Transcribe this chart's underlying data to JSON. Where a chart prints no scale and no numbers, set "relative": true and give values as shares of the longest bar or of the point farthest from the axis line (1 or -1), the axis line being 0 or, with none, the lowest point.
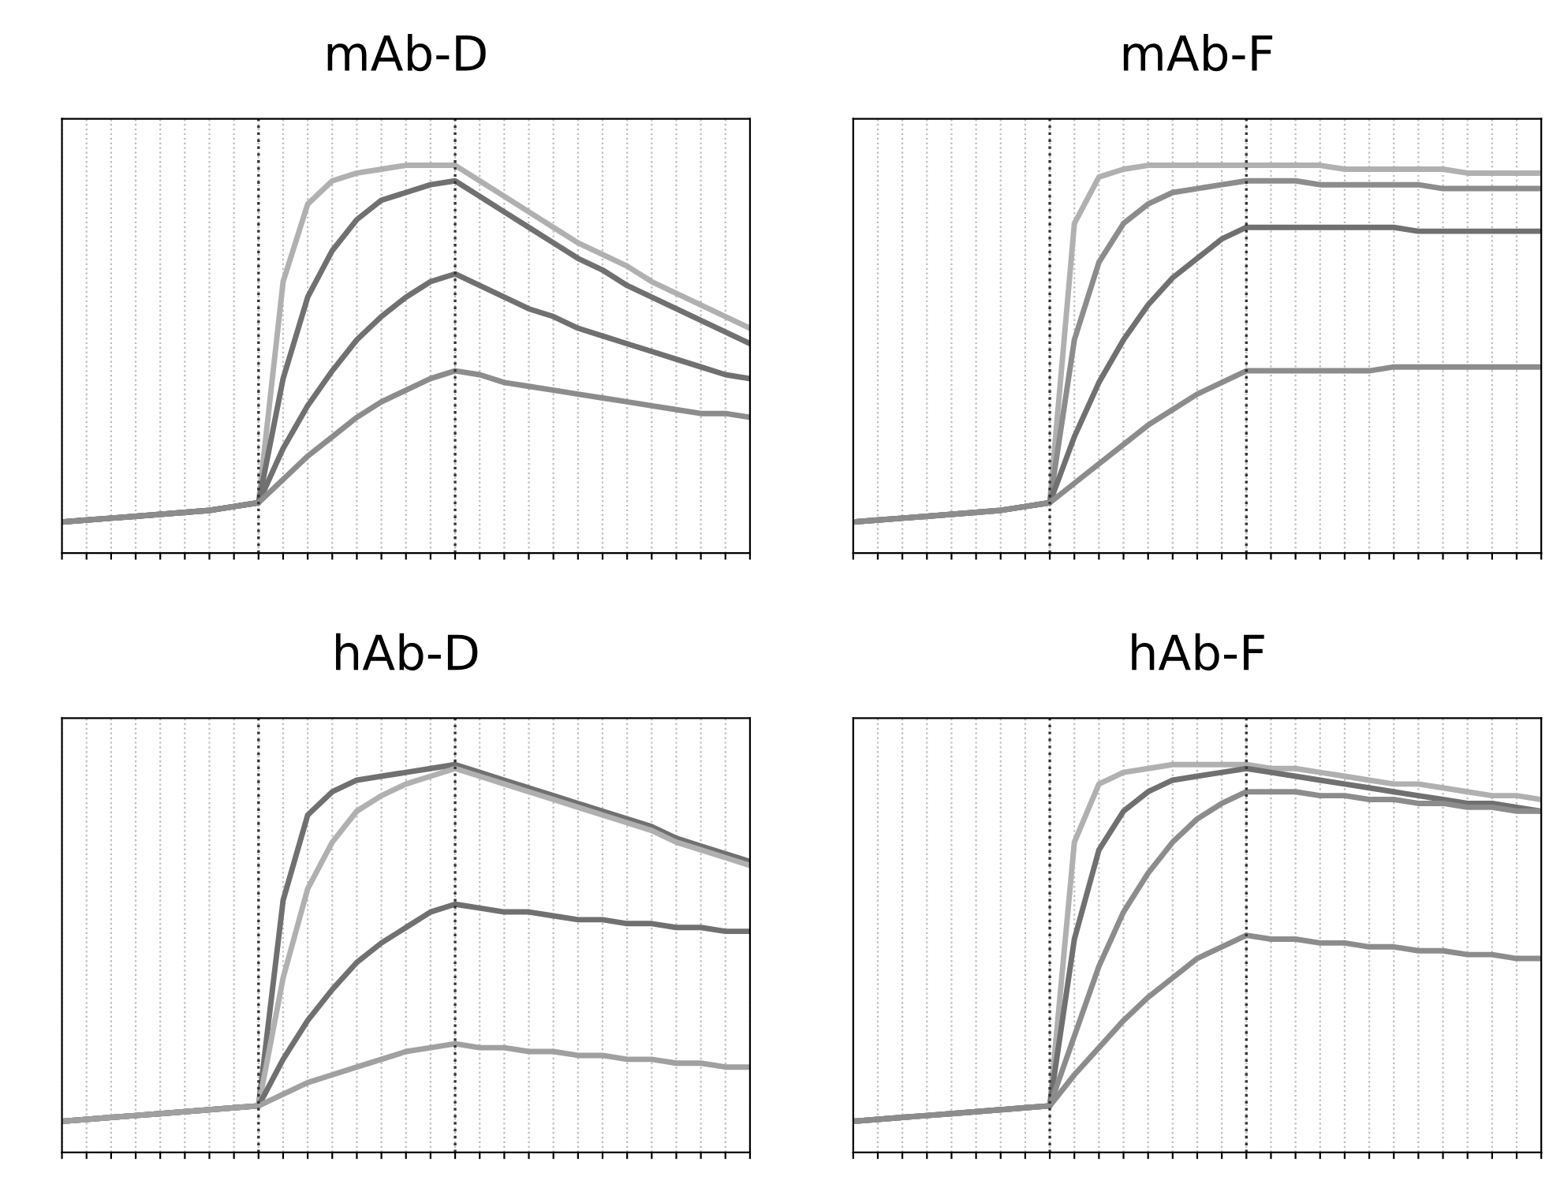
{
  "chart_data": [
    {
      "type": "line",
      "title": "mAb-D",
      "relative": true,
      "grid": true,
      "marker": "none",
      "line_style": "solid",
      "categories": [
        null,
        null,
        null,
        null,
        null,
        null,
        null,
        null,
        null,
        null,
        null,
        null,
        null,
        null,
        null,
        null,
        null,
        null,
        null,
        null,
        null,
        null,
        null,
        null,
        null,
        null,
        null,
        null,
        null
      ],
      "series": [
        {
          "color": "#b0b0b0",
          "values": [
            0.08,
            0.085,
            0.09,
            0.095,
            0.1,
            0.105,
            0.11,
            0.12,
            0.13,
            0.7,
            0.9,
            0.96,
            0.98,
            0.99,
            1.0,
            1.0,
            1.0,
            0.96,
            0.92,
            0.88,
            0.84,
            0.8,
            0.77,
            0.74,
            0.7,
            0.67,
            0.64,
            0.61,
            0.58
          ]
        },
        {
          "color": "#707070",
          "values": [
            0.08,
            0.085,
            0.09,
            0.095,
            0.1,
            0.105,
            0.11,
            0.12,
            0.13,
            0.45,
            0.66,
            0.78,
            0.86,
            0.91,
            0.93,
            0.95,
            0.96,
            0.92,
            0.88,
            0.84,
            0.8,
            0.76,
            0.73,
            0.69,
            0.66,
            0.63,
            0.6,
            0.57,
            0.54
          ]
        },
        {
          "color": "#707070",
          "values": [
            0.08,
            0.085,
            0.09,
            0.095,
            0.1,
            0.105,
            0.11,
            0.12,
            0.13,
            0.27,
            0.38,
            0.47,
            0.55,
            0.61,
            0.66,
            0.7,
            0.72,
            0.69,
            0.66,
            0.63,
            0.61,
            0.58,
            0.56,
            0.54,
            0.52,
            0.5,
            0.48,
            0.46,
            0.45
          ]
        },
        {
          "color": "#8c8c8c",
          "values": [
            0.08,
            0.085,
            0.09,
            0.095,
            0.1,
            0.105,
            0.11,
            0.12,
            0.13,
            0.19,
            0.25,
            0.3,
            0.35,
            0.39,
            0.42,
            0.45,
            0.47,
            0.46,
            0.44,
            0.43,
            0.42,
            0.41,
            0.4,
            0.39,
            0.38,
            0.37,
            0.36,
            0.36,
            0.35
          ]
        }
      ]
    },
    {
      "type": "line",
      "title": "mAb-F",
      "relative": true,
      "grid": true,
      "marker": "none",
      "line_style": "solid",
      "categories": [
        null,
        null,
        null,
        null,
        null,
        null,
        null,
        null,
        null,
        null,
        null,
        null,
        null,
        null,
        null,
        null,
        null,
        null,
        null,
        null,
        null,
        null,
        null,
        null,
        null,
        null,
        null,
        null,
        null
      ],
      "series": [
        {
          "color": "#b0b0b0",
          "values": [
            0.08,
            0.085,
            0.09,
            0.095,
            0.1,
            0.105,
            0.11,
            0.12,
            0.13,
            0.85,
            0.97,
            0.99,
            1.0,
            1.0,
            1.0,
            1.0,
            1.0,
            1.0,
            1.0,
            1.0,
            0.99,
            0.99,
            0.99,
            0.99,
            0.99,
            0.98,
            0.98,
            0.98,
            0.98
          ]
        },
        {
          "color": "#8c8c8c",
          "values": [
            0.08,
            0.085,
            0.09,
            0.095,
            0.1,
            0.105,
            0.11,
            0.12,
            0.13,
            0.55,
            0.75,
            0.85,
            0.9,
            0.93,
            0.94,
            0.95,
            0.96,
            0.96,
            0.96,
            0.95,
            0.95,
            0.95,
            0.95,
            0.95,
            0.94,
            0.94,
            0.94,
            0.94,
            0.94
          ]
        },
        {
          "color": "#707070",
          "values": [
            0.08,
            0.085,
            0.09,
            0.095,
            0.1,
            0.105,
            0.11,
            0.12,
            0.13,
            0.3,
            0.44,
            0.55,
            0.64,
            0.71,
            0.76,
            0.81,
            0.84,
            0.84,
            0.84,
            0.84,
            0.84,
            0.84,
            0.84,
            0.83,
            0.83,
            0.83,
            0.83,
            0.83,
            0.83
          ]
        },
        {
          "color": "#8c8c8c",
          "values": [
            0.08,
            0.085,
            0.09,
            0.095,
            0.1,
            0.105,
            0.11,
            0.12,
            0.13,
            0.18,
            0.23,
            0.28,
            0.33,
            0.37,
            0.41,
            0.44,
            0.47,
            0.47,
            0.47,
            0.47,
            0.47,
            0.47,
            0.48,
            0.48,
            0.48,
            0.48,
            0.48,
            0.48,
            0.48
          ]
        }
      ]
    },
    {
      "type": "line",
      "title": "hAb-D",
      "relative": true,
      "grid": true,
      "marker": "none",
      "line_style": "solid",
      "categories": [
        null,
        null,
        null,
        null,
        null,
        null,
        null,
        null,
        null,
        null,
        null,
        null,
        null,
        null,
        null,
        null,
        null,
        null,
        null,
        null,
        null,
        null,
        null,
        null,
        null,
        null,
        null,
        null,
        null
      ],
      "series": [
        {
          "color": "#707070",
          "values": [
            0.08,
            0.085,
            0.09,
            0.095,
            0.1,
            0.105,
            0.11,
            0.115,
            0.12,
            0.65,
            0.87,
            0.93,
            0.96,
            0.97,
            0.98,
            0.99,
            1.0,
            0.98,
            0.96,
            0.94,
            0.92,
            0.9,
            0.88,
            0.86,
            0.84,
            0.81,
            0.79,
            0.77,
            0.75
          ]
        },
        {
          "color": "#b0b0b0",
          "values": [
            0.08,
            0.085,
            0.09,
            0.095,
            0.1,
            0.105,
            0.11,
            0.115,
            0.12,
            0.45,
            0.68,
            0.8,
            0.88,
            0.92,
            0.95,
            0.97,
            0.99,
            0.97,
            0.95,
            0.93,
            0.91,
            0.89,
            0.87,
            0.85,
            0.83,
            0.8,
            0.78,
            0.76,
            0.74
          ]
        },
        {
          "color": "#707070",
          "values": [
            0.08,
            0.085,
            0.09,
            0.095,
            0.1,
            0.105,
            0.11,
            0.115,
            0.12,
            0.24,
            0.34,
            0.42,
            0.49,
            0.54,
            0.58,
            0.62,
            0.64,
            0.63,
            0.62,
            0.62,
            0.61,
            0.6,
            0.6,
            0.59,
            0.59,
            0.58,
            0.58,
            0.57,
            0.57
          ]
        },
        {
          "color": "#a0a0a0",
          "values": [
            0.08,
            0.085,
            0.09,
            0.095,
            0.1,
            0.105,
            0.11,
            0.115,
            0.12,
            0.15,
            0.18,
            0.2,
            0.22,
            0.24,
            0.26,
            0.27,
            0.28,
            0.27,
            0.27,
            0.26,
            0.26,
            0.25,
            0.25,
            0.24,
            0.24,
            0.23,
            0.23,
            0.22,
            0.22
          ]
        }
      ]
    },
    {
      "type": "line",
      "title": "hAb-F",
      "relative": true,
      "grid": true,
      "marker": "none",
      "line_style": "solid",
      "categories": [
        null,
        null,
        null,
        null,
        null,
        null,
        null,
        null,
        null,
        null,
        null,
        null,
        null,
        null,
        null,
        null,
        null,
        null,
        null,
        null,
        null,
        null,
        null,
        null,
        null,
        null,
        null,
        null,
        null
      ],
      "series": [
        {
          "color": "#b0b0b0",
          "values": [
            0.08,
            0.085,
            0.09,
            0.095,
            0.1,
            0.105,
            0.11,
            0.115,
            0.12,
            0.8,
            0.95,
            0.98,
            0.99,
            1.0,
            1.0,
            1.0,
            1.0,
            0.99,
            0.99,
            0.98,
            0.97,
            0.96,
            0.95,
            0.95,
            0.94,
            0.93,
            0.92,
            0.92,
            0.91
          ]
        },
        {
          "color": "#707070",
          "values": [
            0.08,
            0.085,
            0.09,
            0.095,
            0.1,
            0.105,
            0.11,
            0.115,
            0.12,
            0.55,
            0.78,
            0.88,
            0.93,
            0.96,
            0.97,
            0.98,
            0.99,
            0.98,
            0.97,
            0.96,
            0.95,
            0.94,
            0.93,
            0.92,
            0.91,
            0.9,
            0.9,
            0.89,
            0.88
          ]
        },
        {
          "color": "#8c8c8c",
          "values": [
            0.08,
            0.085,
            0.09,
            0.095,
            0.1,
            0.105,
            0.11,
            0.115,
            0.12,
            0.3,
            0.48,
            0.62,
            0.72,
            0.8,
            0.86,
            0.9,
            0.93,
            0.93,
            0.93,
            0.92,
            0.92,
            0.91,
            0.91,
            0.9,
            0.9,
            0.89,
            0.89,
            0.88,
            0.88
          ]
        },
        {
          "color": "#8c8c8c",
          "values": [
            0.08,
            0.085,
            0.09,
            0.095,
            0.1,
            0.105,
            0.11,
            0.115,
            0.12,
            0.2,
            0.27,
            0.34,
            0.4,
            0.45,
            0.5,
            0.53,
            0.56,
            0.55,
            0.55,
            0.54,
            0.54,
            0.53,
            0.53,
            0.52,
            0.52,
            0.51,
            0.51,
            0.5,
            0.5
          ]
        }
      ]
    }
  ]
}
